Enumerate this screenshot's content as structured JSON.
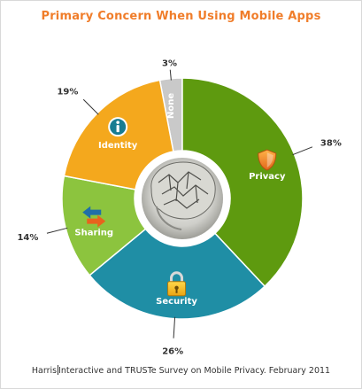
{
  "colors": {
    "title": "#f07d2a",
    "privacy": "#5e9a0f",
    "security": "#1f8ea5",
    "sharing": "#8cc43e",
    "identity": "#f4a81d",
    "none": "#c9c9c9",
    "slice_text": "#ffffff",
    "leader": "#333333"
  },
  "chart_data": {
    "type": "pie",
    "variant": "donut",
    "title": "Primary Concern When Using Mobile Apps",
    "slices": [
      {
        "label": "None",
        "value": 3,
        "value_label": "3%",
        "color": "#c9c9c9",
        "icon": "none"
      },
      {
        "label": "Privacy",
        "value": 38,
        "value_label": "38%",
        "color": "#5e9a0f",
        "icon": "shield-icon"
      },
      {
        "label": "Security",
        "value": 26,
        "value_label": "26%",
        "color": "#1f8ea5",
        "icon": "padlock-icon"
      },
      {
        "label": "Sharing",
        "value": 14,
        "value_label": "14%",
        "color": "#8cc43e",
        "icon": "exchange-arrows-icon"
      },
      {
        "label": "Identity",
        "value": 19,
        "value_label": "19%",
        "color": "#f4a81d",
        "icon": "info-icon"
      }
    ],
    "center_image": "brain-maze-illustration",
    "legend": "none"
  },
  "source": {
    "before": "Harris",
    "after": "Interactive and TRUSTe Survey on Mobile Privacy. February 2011"
  }
}
